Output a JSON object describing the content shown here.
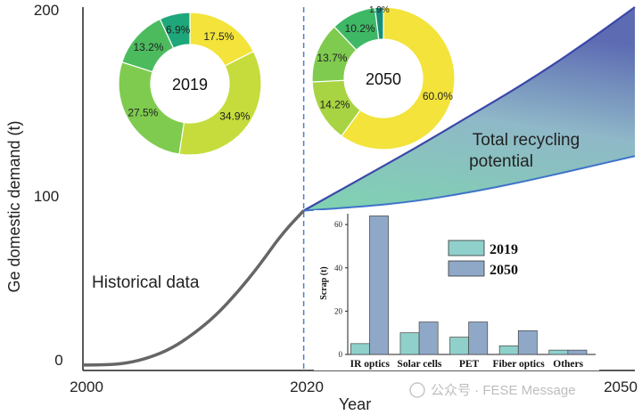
{
  "chart_data": [
    {
      "type": "area",
      "xlabel": "Year",
      "ylabel": "Ge domestic demand (t)",
      "xlim": [
        2000,
        2050
      ],
      "ylim": [
        0,
        200
      ],
      "x_ticks": [
        "2000",
        "2020",
        "2050"
      ],
      "y_ticks": [
        "0",
        "100",
        "200"
      ],
      "divider_year": 2020,
      "series": [
        {
          "name": "Historical data",
          "x": [
            2000,
            2002,
            2004,
            2006,
            2008,
            2010,
            2012,
            2014,
            2016,
            2018,
            2020
          ],
          "y": [
            3,
            3,
            4,
            7,
            12,
            20,
            30,
            43,
            58,
            75,
            88
          ]
        },
        {
          "name": "Total recycling potential",
          "x": [
            2020,
            2025,
            2030,
            2035,
            2040,
            2045,
            2050
          ],
          "y_upper": [
            88,
            105,
            122,
            140,
            158,
            178,
            200
          ],
          "y_lower": [
            88,
            90,
            93,
            98,
            104,
            111,
            118
          ]
        }
      ],
      "grid": false
    },
    {
      "type": "pie",
      "variant": "donut",
      "center_label": "2019",
      "slices": [
        {
          "label": "17.5%",
          "value": 17.5,
          "color": "#f3e33a"
        },
        {
          "label": "34.9%",
          "value": 34.9,
          "color": "#c5dc3c"
        },
        {
          "label": "27.5%",
          "value": 27.5,
          "color": "#7fcb4f"
        },
        {
          "label": "13.2%",
          "value": 13.2,
          "color": "#4cbb5e"
        },
        {
          "label": "6.9%",
          "value": 6.9,
          "color": "#1ea77a"
        }
      ]
    },
    {
      "type": "pie",
      "variant": "donut",
      "center_label": "2050",
      "slices": [
        {
          "label": "60.0%",
          "value": 60.0,
          "color": "#f3e33a"
        },
        {
          "label": "14.2%",
          "value": 14.2,
          "color": "#a8d443"
        },
        {
          "label": "13.7%",
          "value": 13.7,
          "color": "#7fcb4f"
        },
        {
          "label": "10.2%",
          "value": 10.2,
          "color": "#3fb866"
        },
        {
          "label": "1.9%",
          "value": 1.9,
          "color": "#168f78"
        }
      ]
    },
    {
      "type": "bar",
      "ylabel": "Scrap (t)",
      "ylim": [
        0,
        65
      ],
      "y_ticks": [
        "0",
        "20",
        "40",
        "60"
      ],
      "categories": [
        "IR optics",
        "Solar cells",
        "PET",
        "Fiber optics",
        "Others"
      ],
      "series": [
        {
          "name": "2019",
          "values": [
            5,
            10,
            8,
            4,
            2
          ],
          "color": "#8fd0cb"
        },
        {
          "name": "2050",
          "values": [
            64,
            15,
            15,
            11,
            2
          ],
          "color": "#8fa8c8"
        }
      ],
      "legend": "top-right"
    }
  ],
  "watermark": "公众号 · FESE Message"
}
